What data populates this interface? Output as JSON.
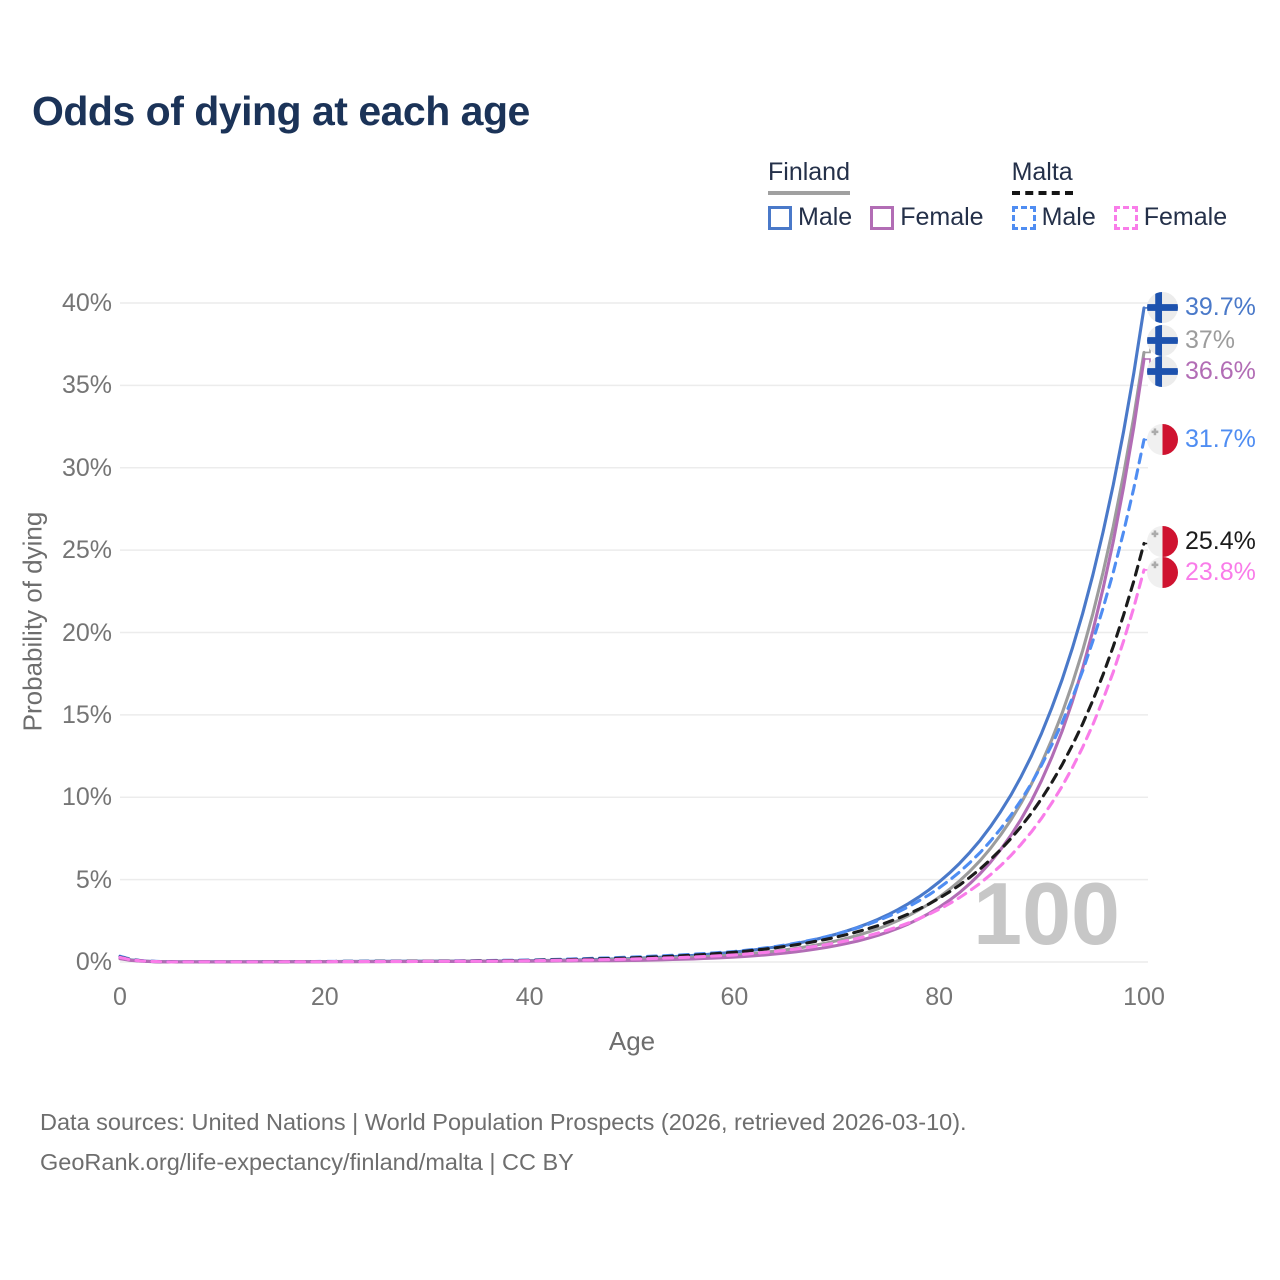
{
  "title": "Odds of dying at each age",
  "legend": {
    "groups": [
      {
        "name": "Finland",
        "line_style": "solid",
        "underline_color": "#a0a0a0",
        "items": [
          {
            "label": "Male",
            "color": "#4a79c9",
            "dashed": false
          },
          {
            "label": "Female",
            "color": "#b26db5",
            "dashed": false
          }
        ]
      },
      {
        "name": "Malta",
        "line_style": "dashed",
        "underline_color": "#151515",
        "items": [
          {
            "label": "Male",
            "color": "#4f8df2",
            "dashed": true
          },
          {
            "label": "Female",
            "color": "#f97ce9",
            "dashed": true
          }
        ]
      }
    ]
  },
  "chart_data": {
    "type": "line",
    "title": "Odds of dying at each age",
    "xlabel": "Age",
    "ylabel": "Probability of dying",
    "xlim": [
      0,
      100
    ],
    "ylim": [
      0,
      40
    ],
    "x_ticks": [
      0,
      20,
      40,
      60,
      80,
      100
    ],
    "y_ticks": [
      0,
      5,
      10,
      15,
      20,
      25,
      30,
      35,
      40
    ],
    "y_tick_suffix": "%",
    "grid": "horizontal",
    "legend_position": "top-right",
    "watermark": "100",
    "x": [
      0,
      5,
      10,
      15,
      20,
      25,
      30,
      35,
      40,
      45,
      50,
      55,
      60,
      65,
      70,
      75,
      80,
      85,
      90,
      95,
      100
    ],
    "series": [
      {
        "name": "Finland Male",
        "country": "Finland",
        "sex": "Male",
        "color": "#4a79c9",
        "dashed": false,
        "flag": "finland",
        "end_label": "39.7%",
        "end_value": 39.7,
        "values": [
          0.25,
          0.01,
          0.01,
          0.02,
          0.03,
          0.04,
          0.05,
          0.06,
          0.08,
          0.13,
          0.21,
          0.36,
          0.6,
          1.01,
          1.7,
          2.87,
          4.86,
          8.21,
          13.89,
          23.48,
          39.7
        ]
      },
      {
        "name": "Finland Both sexes",
        "country": "Finland",
        "sex": "Both",
        "color": "#9c9c9c",
        "dashed": false,
        "flag": "finland",
        "end_label": "37%",
        "end_value": 37,
        "values": [
          0.22,
          0.009,
          0.009,
          0.013,
          0.022,
          0.03,
          0.04,
          0.05,
          0.07,
          0.1,
          0.17,
          0.27,
          0.42,
          0.74,
          1.29,
          2.25,
          3.94,
          6.89,
          12.07,
          21.13,
          37
        ]
      },
      {
        "name": "Finland Female",
        "country": "Finland",
        "sex": "Female",
        "color": "#b26db5",
        "dashed": false,
        "flag": "finland",
        "end_label": "36.6%",
        "end_value": 36.6,
        "values": [
          0.2,
          0.007,
          0.007,
          0.01,
          0.015,
          0.02,
          0.03,
          0.04,
          0.05,
          0.07,
          0.09,
          0.17,
          0.3,
          0.55,
          1.0,
          1.82,
          3.32,
          6.05,
          11.02,
          20.09,
          36.6
        ]
      },
      {
        "name": "Malta Male",
        "country": "Malta",
        "sex": "Male",
        "color": "#4f8df2",
        "dashed": true,
        "flag": "malta",
        "end_label": "31.7%",
        "end_value": 31.7,
        "values": [
          0.35,
          0.012,
          0.013,
          0.02,
          0.035,
          0.05,
          0.06,
          0.08,
          0.12,
          0.2,
          0.3,
          0.44,
          0.64,
          1.04,
          1.7,
          2.76,
          4.5,
          7.33,
          11.95,
          19.47,
          31.7
        ]
      },
      {
        "name": "Malta Both sexes",
        "country": "Malta",
        "sex": "Both",
        "color": "#1b1b1b",
        "dashed": true,
        "flag": "malta",
        "end_label": "25.4%",
        "end_value": 25.4,
        "values": [
          0.3,
          0.01,
          0.011,
          0.018,
          0.03,
          0.04,
          0.05,
          0.07,
          0.1,
          0.16,
          0.25,
          0.38,
          0.59,
          0.95,
          1.52,
          2.42,
          3.87,
          6.21,
          9.92,
          15.87,
          25.4
        ]
      },
      {
        "name": "Malta Female",
        "country": "Malta",
        "sex": "Female",
        "color": "#f97ce9",
        "dashed": true,
        "flag": "malta",
        "end_label": "23.8%",
        "end_value": 23.8,
        "values": [
          0.28,
          0.009,
          0.01,
          0.015,
          0.02,
          0.03,
          0.04,
          0.05,
          0.08,
          0.12,
          0.18,
          0.28,
          0.43,
          0.71,
          1.17,
          1.94,
          3.2,
          5.29,
          8.73,
          14.4,
          23.8
        ]
      }
    ]
  },
  "flag_colors": {
    "finland_bg": "#ececec",
    "finland_blue": "#1d52ae",
    "malta_white": "#f0f0f0",
    "malta_red": "#cf1330",
    "malta_cross": "#ababab"
  },
  "footer": {
    "line1": "Data sources: United Nations | World Population Prospects (2026, retrieved 2026-03-10).",
    "line2": "GeoRank.org/life-expectancy/finland/malta | CC BY"
  }
}
